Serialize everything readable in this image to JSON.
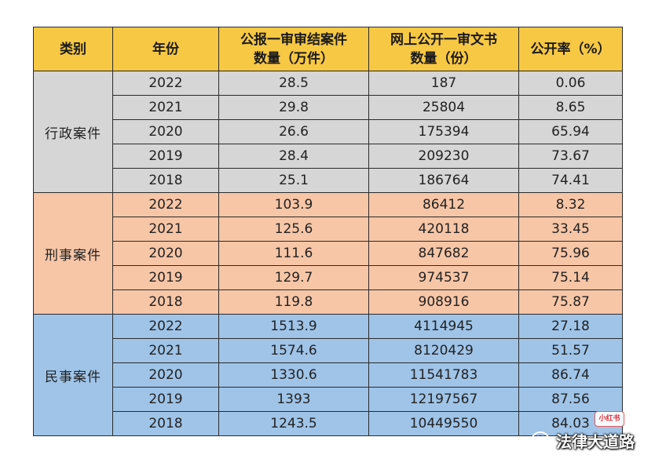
{
  "header": {
    "category": "类别",
    "year": "年份",
    "cases_line1": "公报一审审结案件",
    "cases_line2": "数量（万件）",
    "docs_line1": "网上公开一审文书",
    "docs_line2": "数量（份）",
    "rate": "公开率（%）"
  },
  "groups": [
    {
      "category": "行政案件",
      "rows": [
        {
          "year": "2022",
          "cases": "28.5",
          "docs": "187",
          "rate": "0.06"
        },
        {
          "year": "2021",
          "cases": "29.8",
          "docs": "25804",
          "rate": "8.65"
        },
        {
          "year": "2020",
          "cases": "26.6",
          "docs": "175394",
          "rate": "65.94"
        },
        {
          "year": "2019",
          "cases": "28.4",
          "docs": "209230",
          "rate": "73.67"
        },
        {
          "year": "2018",
          "cases": "25.1",
          "docs": "186764",
          "rate": "74.41"
        }
      ]
    },
    {
      "category": "刑事案件",
      "rows": [
        {
          "year": "2022",
          "cases": "103.9",
          "docs": "86412",
          "rate": "8.32"
        },
        {
          "year": "2021",
          "cases": "125.6",
          "docs": "420118",
          "rate": "33.45"
        },
        {
          "year": "2020",
          "cases": "111.6",
          "docs": "847682",
          "rate": "75.96"
        },
        {
          "year": "2019",
          "cases": "129.7",
          "docs": "974537",
          "rate": "75.14"
        },
        {
          "year": "2018",
          "cases": "119.8",
          "docs": "908916",
          "rate": "75.87"
        }
      ]
    },
    {
      "category": "民事案件",
      "rows": [
        {
          "year": "2022",
          "cases": "1513.9",
          "docs": "4114945",
          "rate": "27.18"
        },
        {
          "year": "2021",
          "cases": "1574.6",
          "docs": "8120429",
          "rate": "51.57"
        },
        {
          "year": "2020",
          "cases": "1330.6",
          "docs": "11541783",
          "rate": "86.74"
        },
        {
          "year": "2019",
          "cases": "1393",
          "docs": "12197567",
          "rate": "87.56"
        },
        {
          "year": "2018",
          "cases": "1243.5",
          "docs": "10449550",
          "rate": "84.03"
        }
      ]
    }
  ],
  "watermark": {
    "badge": "小红书",
    "text": "法律大道路"
  },
  "colors": {
    "header": "#f7c843",
    "admin": "#d6d6d6",
    "criminal": "#f7c6a7",
    "civil": "#9fc4e8",
    "highlight": "#d9363e"
  }
}
